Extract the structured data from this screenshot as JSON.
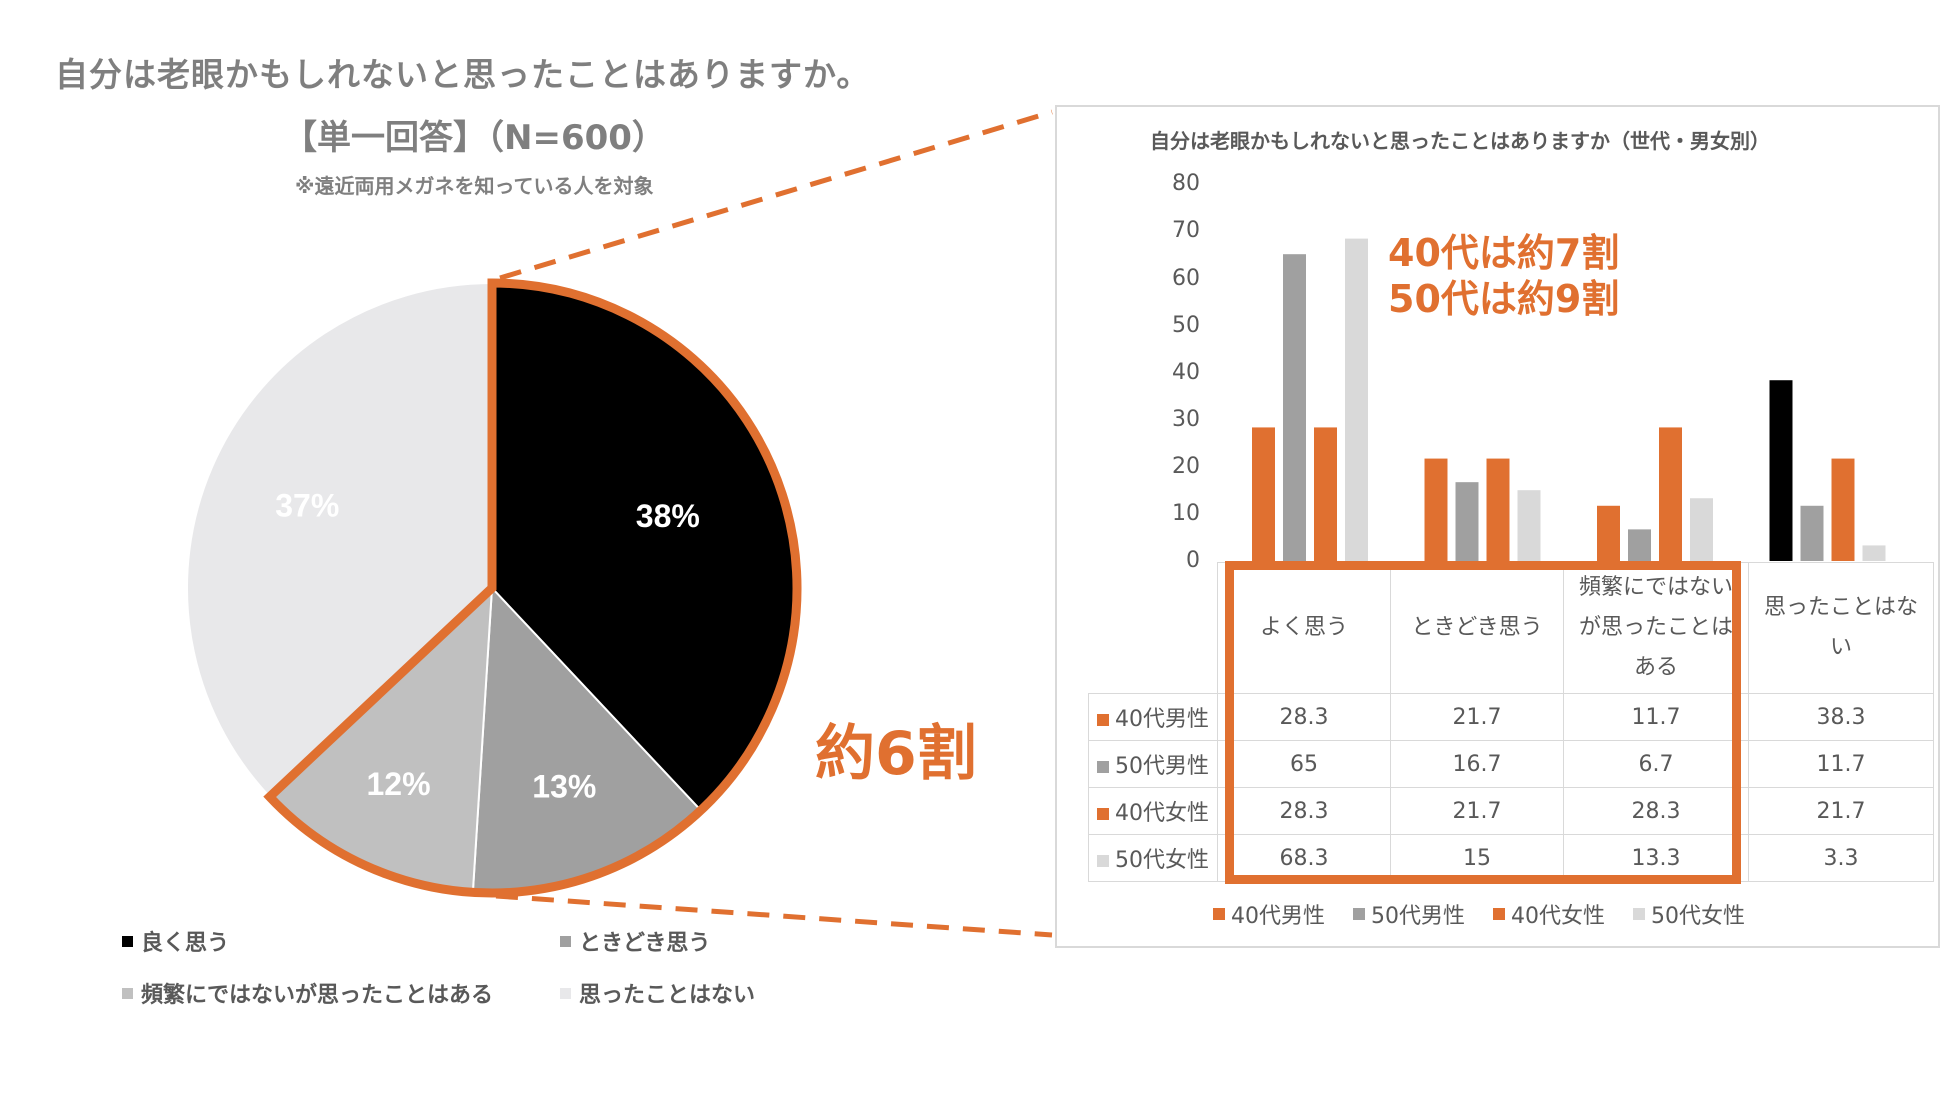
{
  "left": {
    "title": "自分は老眼かもしれないと思ったことはありますか。",
    "subtitle": "【単一回答】（N=600）",
    "note": "※遠近両用メガネを知っている人を対象",
    "callout": "約6割",
    "legend": [
      "良く思う",
      "ときどき思う",
      "頻繁にではないが思ったことはある",
      "思ったことはない"
    ]
  },
  "right": {
    "title": "自分は老眼かもしれないと思ったことはありますか（世代・男女別）",
    "callout_line1": "40代は約7割",
    "callout_line2": "50代は約9割",
    "yticks": [
      "80",
      "70",
      "60",
      "50",
      "40",
      "30",
      "20",
      "10",
      "0"
    ],
    "headers": [
      "よく思う",
      "ときどき思う",
      "頻繁にではないが思ったことはある",
      "思ったことはない"
    ],
    "rows": [
      {
        "label": "40代男性",
        "cells": [
          "28.3",
          "21.7",
          "11.7",
          "38.3"
        ]
      },
      {
        "label": "50代男性",
        "cells": [
          "65",
          "16.7",
          "6.7",
          "11.7"
        ]
      },
      {
        "label": "40代女性",
        "cells": [
          "28.3",
          "21.7",
          "28.3",
          "21.7"
        ]
      },
      {
        "label": "50代女性",
        "cells": [
          "68.3",
          "15",
          "13.3",
          "3.3"
        ]
      }
    ]
  },
  "colors": {
    "accent": "#e07030",
    "black": "#000000",
    "gray": "#a0a0a0",
    "lightgray": "#d9d9d9",
    "pale": "#e8e8ea"
  },
  "chart_data": [
    {
      "type": "pie",
      "title": "自分は老眼かもしれないと思ったことはありますか。",
      "categories": [
        "良く思う",
        "ときどき思う",
        "頻繁にではないが思ったことはある",
        "思ったことはない"
      ],
      "values": [
        38,
        13,
        12,
        37
      ],
      "labels": [
        "38%",
        "13%",
        "12%",
        "37%"
      ],
      "colors": [
        "#000000",
        "#a0a0a0",
        "#c0c0c0",
        "#e8e8ea"
      ],
      "legend": "bottom"
    },
    {
      "type": "bar",
      "title": "自分は老眼かもしれないと思ったことはありますか（世代・男女別）",
      "categories": [
        "よく思う",
        "ときどき思う",
        "頻繁にではないが思ったことはある",
        "思ったことはない"
      ],
      "series": [
        {
          "name": "40代男性",
          "values": [
            28.3,
            21.7,
            11.7,
            38.3
          ],
          "color": "#e07030"
        },
        {
          "name": "50代男性",
          "values": [
            65,
            16.7,
            6.7,
            11.7
          ],
          "color": "#a0a0a0"
        },
        {
          "name": "40代女性",
          "values": [
            28.3,
            21.7,
            28.3,
            21.7
          ],
          "color": "#e07030"
        },
        {
          "name": "50代女性",
          "values": [
            68.3,
            15,
            13.3,
            3.3
          ],
          "color": "#d9d9d9"
        }
      ],
      "ylim": [
        0,
        80
      ],
      "grid": false,
      "legend": "bottom",
      "data_table": true
    }
  ]
}
